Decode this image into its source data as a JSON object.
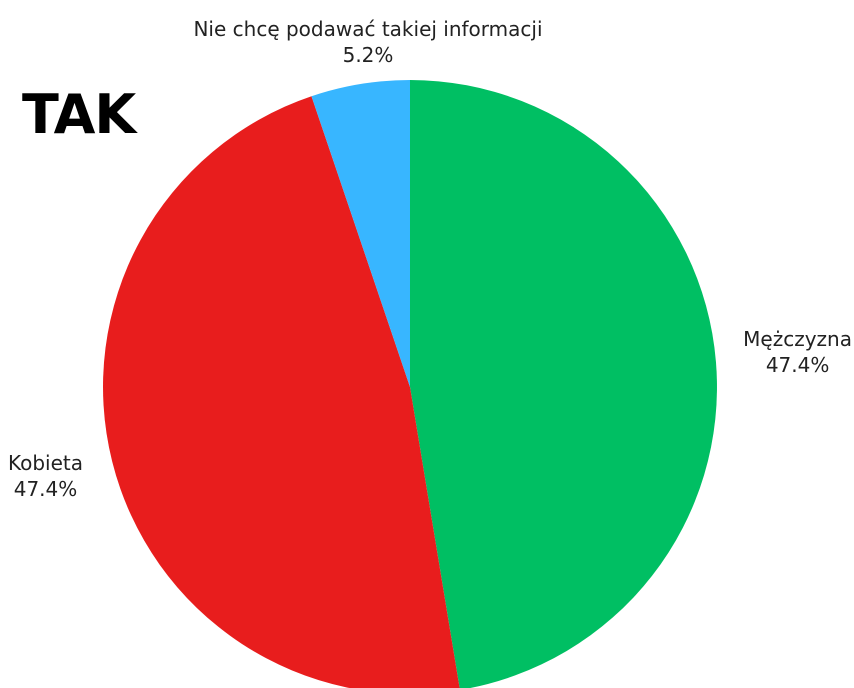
{
  "chart_data": {
    "type": "pie",
    "title": "TAK",
    "start_angle_deg": 0,
    "direction": "clockwise",
    "slices": [
      {
        "label": "Mężczyzna",
        "value": 47.4,
        "value_label": "47.4%",
        "color": "#00bf63"
      },
      {
        "label": "Kobieta",
        "value": 47.4,
        "value_label": "47.4%",
        "color": "#e81d1d"
      },
      {
        "label": "Nie chcę podawać takiej informacji",
        "value": 5.2,
        "value_label": "5.2%",
        "color": "#38b6ff"
      }
    ]
  }
}
